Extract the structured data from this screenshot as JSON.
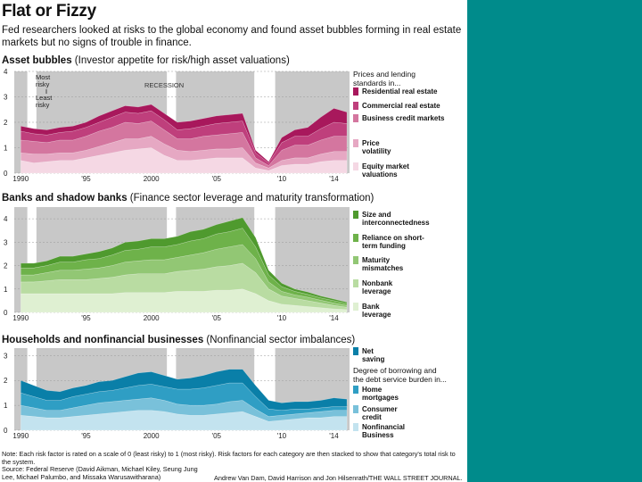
{
  "title": "Flat or Fizzy",
  "subtitle": "Fed researchers looked at risks to the global economy and found asset bubbles forming in real estate markets but no signs of trouble in finance.",
  "panels": [
    {
      "id": "asset",
      "head_bold": "Asset bubbles",
      "head_rest": " (Investor appetite for risk/high asset valuations)",
      "annotation_most": "Most\nrisky",
      "annotation_least": "Least\nrisky",
      "recession_label": "RECESSION",
      "legend_title": "Prices and lending\nstandards in...",
      "legend": [
        {
          "label": "Residential real estate",
          "color": "#a8185c"
        },
        {
          "label": "Commercial real estate",
          "color": "#bf3f7c"
        },
        {
          "label": "Business credit markets",
          "color": "#d4769f"
        },
        {
          "label": "Price\nvolatility",
          "color": "#e6a8c3"
        },
        {
          "label": "Equity market\nvaluations",
          "color": "#f5d8e4"
        }
      ]
    },
    {
      "id": "banks",
      "head_bold": "Banks and shadow banks",
      "head_rest": " (Finance sector leverage and maturity transformation)",
      "legend": [
        {
          "label": "Size and\ninterconnectedness",
          "color": "#4f9a2e"
        },
        {
          "label": "Reliance on short-\nterm funding",
          "color": "#6eb24a"
        },
        {
          "label": "Maturity\nmismatches",
          "color": "#92c774"
        },
        {
          "label": "Nonbank\nleverage",
          "color": "#b9dca2"
        },
        {
          "label": "Bank\nleverage",
          "color": "#dff0d2"
        }
      ]
    },
    {
      "id": "households",
      "head_bold": "Households and nonfinancial businesses",
      "head_rest": " (Nonfinancial sector imbalances)",
      "legend_title": "Degree of borrowing and\nthe debt service burden in...",
      "legend": [
        {
          "label": "Net\nsaving",
          "color": "#0a7fa8"
        },
        {
          "label": "Home\nmortgages",
          "color": "#2f9ec4"
        },
        {
          "label": "Consumer\ncredit",
          "color": "#79c1da"
        },
        {
          "label": "Nonfinancial\nBusiness",
          "color": "#c3e3ef"
        }
      ]
    }
  ],
  "chart_data": [
    {
      "type": "area",
      "stacked": true,
      "title": "Asset bubbles",
      "x": [
        1990,
        1991,
        1992,
        1993,
        1994,
        1995,
        1996,
        1997,
        1998,
        1999,
        2000,
        2001,
        2002,
        2003,
        2004,
        2005,
        2006,
        2007,
        2008,
        2009,
        2010,
        2011,
        2012,
        2013,
        2014,
        2015
      ],
      "ylim": [
        0,
        4
      ],
      "xlim": [
        1989.5,
        2015.2
      ],
      "yticks": [
        0,
        1,
        2,
        3,
        4
      ],
      "xtick_values": [
        1990,
        1995,
        2000,
        2005,
        2010,
        2014
      ],
      "xtick_labels": [
        "1990",
        "'95",
        "2000",
        "'05",
        "'10",
        "'14"
      ],
      "recessions": [
        [
          1990.5,
          1991.2
        ],
        [
          2001.2,
          2001.9
        ],
        [
          2007.9,
          2009.5
        ]
      ],
      "series": [
        {
          "name": "Equity market valuations",
          "values": [
            0.5,
            0.4,
            0.45,
            0.5,
            0.5,
            0.6,
            0.7,
            0.8,
            0.9,
            0.95,
            1.0,
            0.7,
            0.5,
            0.5,
            0.55,
            0.6,
            0.6,
            0.6,
            0.2,
            0.1,
            0.3,
            0.35,
            0.35,
            0.45,
            0.5,
            0.5
          ]
        },
        {
          "name": "Price volatility",
          "values": [
            0.3,
            0.35,
            0.3,
            0.3,
            0.3,
            0.3,
            0.35,
            0.4,
            0.45,
            0.4,
            0.45,
            0.45,
            0.4,
            0.35,
            0.35,
            0.35,
            0.35,
            0.4,
            0.2,
            0.1,
            0.2,
            0.25,
            0.25,
            0.3,
            0.35,
            0.35
          ]
        },
        {
          "name": "Business credit markets",
          "values": [
            0.5,
            0.5,
            0.45,
            0.5,
            0.5,
            0.55,
            0.6,
            0.6,
            0.65,
            0.6,
            0.6,
            0.55,
            0.45,
            0.5,
            0.55,
            0.55,
            0.6,
            0.6,
            0.2,
            0.1,
            0.4,
            0.5,
            0.5,
            0.55,
            0.6,
            0.6
          ]
        },
        {
          "name": "Commercial real estate",
          "values": [
            0.35,
            0.3,
            0.3,
            0.3,
            0.35,
            0.35,
            0.35,
            0.4,
            0.4,
            0.4,
            0.4,
            0.4,
            0.35,
            0.4,
            0.4,
            0.45,
            0.45,
            0.45,
            0.2,
            0.1,
            0.3,
            0.35,
            0.35,
            0.45,
            0.55,
            0.5
          ]
        },
        {
          "name": "Residential real estate",
          "values": [
            0.2,
            0.2,
            0.2,
            0.2,
            0.2,
            0.2,
            0.25,
            0.25,
            0.25,
            0.25,
            0.25,
            0.25,
            0.3,
            0.3,
            0.3,
            0.3,
            0.3,
            0.3,
            0.1,
            0.05,
            0.2,
            0.25,
            0.35,
            0.45,
            0.55,
            0.45
          ]
        }
      ]
    },
    {
      "type": "area",
      "stacked": true,
      "title": "Banks and shadow banks",
      "x": [
        1990,
        1991,
        1992,
        1993,
        1994,
        1995,
        1996,
        1997,
        1998,
        1999,
        2000,
        2001,
        2002,
        2003,
        2004,
        2005,
        2006,
        2007,
        2008,
        2009,
        2010,
        2011,
        2012,
        2013,
        2014,
        2015
      ],
      "ylim": [
        0,
        4.5
      ],
      "xlim": [
        1989.5,
        2015.2
      ],
      "yticks": [
        0,
        1,
        2,
        3,
        4
      ],
      "xtick_values": [
        1990,
        1995,
        2000,
        2005,
        2010,
        2014
      ],
      "xtick_labels": [
        "1990",
        "'95",
        "2000",
        "'05",
        "'10",
        "'14"
      ],
      "recessions": [
        [
          1990.5,
          1991.2
        ],
        [
          2001.2,
          2001.9
        ],
        [
          2007.9,
          2009.5
        ]
      ],
      "series": [
        {
          "name": "Bank leverage",
          "values": [
            0.8,
            0.8,
            0.8,
            0.8,
            0.8,
            0.8,
            0.8,
            0.8,
            0.85,
            0.85,
            0.85,
            0.85,
            0.9,
            0.9,
            0.9,
            0.95,
            0.95,
            1.0,
            0.8,
            0.5,
            0.35,
            0.3,
            0.25,
            0.2,
            0.15,
            0.12
          ]
        },
        {
          "name": "Nonbank leverage",
          "values": [
            0.5,
            0.5,
            0.55,
            0.6,
            0.6,
            0.6,
            0.65,
            0.7,
            0.75,
            0.8,
            0.8,
            0.8,
            0.85,
            0.9,
            0.95,
            1.0,
            1.05,
            1.1,
            0.9,
            0.5,
            0.35,
            0.3,
            0.25,
            0.2,
            0.15,
            0.1
          ]
        },
        {
          "name": "Maturity mismatches",
          "values": [
            0.3,
            0.3,
            0.35,
            0.4,
            0.4,
            0.45,
            0.45,
            0.5,
            0.55,
            0.55,
            0.6,
            0.6,
            0.6,
            0.65,
            0.7,
            0.75,
            0.8,
            0.8,
            0.6,
            0.3,
            0.2,
            0.15,
            0.15,
            0.12,
            0.1,
            0.08
          ]
        },
        {
          "name": "Reliance on short-term funding",
          "values": [
            0.3,
            0.3,
            0.3,
            0.35,
            0.35,
            0.4,
            0.4,
            0.45,
            0.5,
            0.5,
            0.55,
            0.55,
            0.55,
            0.6,
            0.6,
            0.65,
            0.65,
            0.7,
            0.5,
            0.3,
            0.2,
            0.15,
            0.12,
            0.1,
            0.1,
            0.08
          ]
        },
        {
          "name": "Size and interconnectedness",
          "values": [
            0.2,
            0.2,
            0.2,
            0.25,
            0.25,
            0.25,
            0.3,
            0.3,
            0.35,
            0.35,
            0.35,
            0.35,
            0.35,
            0.4,
            0.4,
            0.4,
            0.45,
            0.45,
            0.4,
            0.2,
            0.15,
            0.1,
            0.1,
            0.08,
            0.07,
            0.06
          ]
        }
      ]
    },
    {
      "type": "area",
      "stacked": true,
      "title": "Households and nonfinancial businesses",
      "x": [
        1990,
        1991,
        1992,
        1993,
        1994,
        1995,
        1996,
        1997,
        1998,
        1999,
        2000,
        2001,
        2002,
        2003,
        2004,
        2005,
        2006,
        2007,
        2008,
        2009,
        2010,
        2011,
        2012,
        2013,
        2014,
        2015
      ],
      "ylim": [
        0,
        3.3
      ],
      "xlim": [
        1989.5,
        2015.2
      ],
      "yticks": [
        0,
        1,
        2,
        3
      ],
      "xtick_values": [
        1990,
        1995,
        2000,
        2005,
        2010,
        2014
      ],
      "xtick_labels": [
        "1990",
        "'95",
        "2000",
        "'05",
        "'10",
        "'14"
      ],
      "recessions": [
        [
          1990.5,
          1991.2
        ],
        [
          2001.2,
          2001.9
        ],
        [
          2007.9,
          2009.5
        ]
      ],
      "series": [
        {
          "name": "Nonfinancial Business",
          "values": [
            0.6,
            0.55,
            0.5,
            0.5,
            0.55,
            0.6,
            0.65,
            0.7,
            0.75,
            0.8,
            0.8,
            0.75,
            0.65,
            0.6,
            0.6,
            0.65,
            0.7,
            0.75,
            0.55,
            0.35,
            0.4,
            0.45,
            0.5,
            0.5,
            0.55,
            0.55
          ]
        },
        {
          "name": "Consumer credit",
          "values": [
            0.4,
            0.35,
            0.3,
            0.3,
            0.35,
            0.4,
            0.45,
            0.45,
            0.45,
            0.45,
            0.5,
            0.45,
            0.4,
            0.4,
            0.4,
            0.4,
            0.45,
            0.45,
            0.3,
            0.2,
            0.2,
            0.2,
            0.2,
            0.25,
            0.25,
            0.25
          ]
        },
        {
          "name": "Home mortgages",
          "values": [
            0.5,
            0.45,
            0.4,
            0.4,
            0.45,
            0.45,
            0.45,
            0.45,
            0.5,
            0.55,
            0.55,
            0.55,
            0.6,
            0.65,
            0.7,
            0.75,
            0.75,
            0.7,
            0.5,
            0.3,
            0.2,
            0.2,
            0.15,
            0.15,
            0.15,
            0.15
          ]
        },
        {
          "name": "Net saving",
          "values": [
            0.5,
            0.45,
            0.4,
            0.35,
            0.35,
            0.35,
            0.4,
            0.4,
            0.45,
            0.5,
            0.5,
            0.45,
            0.4,
            0.45,
            0.5,
            0.55,
            0.55,
            0.55,
            0.45,
            0.35,
            0.3,
            0.3,
            0.3,
            0.3,
            0.35,
            0.3
          ]
        }
      ]
    }
  ],
  "footer": {
    "note": "Note: Each risk factor is rated on a scale of 0 (least risky) to 1 (most risky). Risk factors for each category are then stacked to show that category's total risk to the system.",
    "source": "Source: Federal Reserve (David Aikman, Michael Kiley, Seung Jung Lee, Michael Palumbo, and Missaka Warusawitharana)",
    "credit": "Andrew Van Dam, David Harrison and Jon Hilsenrath/THE WALL STREET JOURNAL."
  }
}
